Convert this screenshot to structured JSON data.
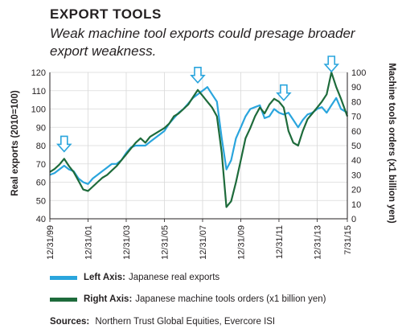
{
  "header": {
    "title": "EXPORT TOOLS",
    "subtitle": "Weak machine tool exports could presage broader export weakness."
  },
  "legend": {
    "left_prefix": "Left Axis:",
    "left_text": "Japanese real exports",
    "right_prefix": "Right Axis:",
    "right_text": "Japanese machine tools orders (x1 billion yen)"
  },
  "sources": {
    "prefix": "Sources:",
    "text": "Northern Trust Global Equities, Evercore ISI"
  },
  "colors": {
    "exports": "#2aa5dd",
    "machine_tools": "#1e6b3b",
    "arrow": "#2aa5dd"
  },
  "chart_data": {
    "type": "line",
    "ylabel_left": "Real exports (2010=100)",
    "ylabel_right": "Machine tools orders (x1 billion yen)",
    "ylim_left": [
      40,
      120
    ],
    "ylim_right": [
      0,
      100
    ],
    "yticks_left": [
      "40",
      "50",
      "60",
      "70",
      "80",
      "90",
      "100",
      "110",
      "120"
    ],
    "yticks_right": [
      "0",
      "10",
      "20",
      "30",
      "40",
      "50",
      "60",
      "70",
      "80",
      "90",
      "100"
    ],
    "xlim": [
      "1999-12-31",
      "2015-07-31"
    ],
    "xticks": [
      "12/31/99",
      "12/31/01",
      "12/31/03",
      "12/31/05",
      "12/31/07",
      "12/31/09",
      "12/31/11",
      "12/31/13",
      "7/31/15"
    ],
    "xtick_dates": [
      "1999-12-31",
      "2001-12-31",
      "2003-12-31",
      "2005-12-31",
      "2007-12-31",
      "2009-12-31",
      "2011-12-31",
      "2013-12-31",
      "2015-07-31"
    ],
    "grid": true,
    "markers": [
      {
        "date": "2000-09-30",
        "label": "peak"
      },
      {
        "date": "2007-09-30",
        "label": "peak"
      },
      {
        "date": "2012-03-31",
        "label": "peak"
      },
      {
        "date": "2014-09-30",
        "label": "peak"
      }
    ],
    "series": [
      {
        "name": "Japanese real exports",
        "axis": "left",
        "x": [
          "1999-12-31",
          "2000-03-31",
          "2000-06-30",
          "2000-09-30",
          "2000-12-31",
          "2001-03-31",
          "2001-06-30",
          "2001-09-30",
          "2001-12-31",
          "2002-03-31",
          "2002-06-30",
          "2002-09-30",
          "2002-12-31",
          "2003-03-31",
          "2003-06-30",
          "2003-09-30",
          "2003-12-31",
          "2004-03-31",
          "2004-06-30",
          "2004-09-30",
          "2004-12-31",
          "2005-03-31",
          "2005-06-30",
          "2005-09-30",
          "2005-12-31",
          "2006-03-31",
          "2006-06-30",
          "2006-09-30",
          "2006-12-31",
          "2007-03-31",
          "2007-06-30",
          "2007-09-30",
          "2007-12-31",
          "2008-03-31",
          "2008-06-30",
          "2008-09-30",
          "2008-12-31",
          "2009-03-31",
          "2009-06-30",
          "2009-09-30",
          "2009-12-31",
          "2010-03-31",
          "2010-06-30",
          "2010-09-30",
          "2010-12-31",
          "2011-03-31",
          "2011-06-30",
          "2011-09-30",
          "2011-12-31",
          "2012-03-31",
          "2012-06-30",
          "2012-09-30",
          "2012-12-31",
          "2013-03-31",
          "2013-06-30",
          "2013-09-30",
          "2013-12-31",
          "2014-03-31",
          "2014-06-30",
          "2014-09-30",
          "2014-12-31",
          "2015-03-31",
          "2015-07-31"
        ],
        "values": [
          64,
          65,
          67,
          69,
          67,
          66,
          62,
          60,
          59,
          62,
          64,
          66,
          68,
          70,
          70,
          72,
          76,
          79,
          80,
          80,
          80,
          82,
          84,
          86,
          88,
          92,
          95,
          98,
          100,
          103,
          106,
          108,
          110,
          112,
          108,
          104,
          84,
          67,
          72,
          84,
          90,
          96,
          100,
          101,
          102,
          95,
          96,
          100,
          98,
          97,
          98,
          94,
          90,
          94,
          97,
          98,
          100,
          101,
          98,
          102,
          106,
          100,
          98
        ]
      },
      {
        "name": "Japanese machine tools orders (x1 billion yen)",
        "axis": "right",
        "x": [
          "1999-12-31",
          "2000-03-31",
          "2000-06-30",
          "2000-09-30",
          "2000-12-31",
          "2001-03-31",
          "2001-06-30",
          "2001-09-30",
          "2001-12-31",
          "2002-03-31",
          "2002-06-30",
          "2002-09-30",
          "2002-12-31",
          "2003-03-31",
          "2003-06-30",
          "2003-09-30",
          "2003-12-31",
          "2004-03-31",
          "2004-06-30",
          "2004-09-30",
          "2004-12-31",
          "2005-03-31",
          "2005-06-30",
          "2005-09-30",
          "2005-12-31",
          "2006-03-31",
          "2006-06-30",
          "2006-09-30",
          "2006-12-31",
          "2007-03-31",
          "2007-06-30",
          "2007-09-30",
          "2007-12-31",
          "2008-03-31",
          "2008-06-30",
          "2008-09-30",
          "2008-12-31",
          "2009-03-31",
          "2009-06-30",
          "2009-09-30",
          "2009-12-31",
          "2010-03-31",
          "2010-06-30",
          "2010-09-30",
          "2010-12-31",
          "2011-03-31",
          "2011-06-30",
          "2011-09-30",
          "2011-12-31",
          "2012-03-31",
          "2012-06-30",
          "2012-09-30",
          "2012-12-31",
          "2013-03-31",
          "2013-06-30",
          "2013-09-30",
          "2013-12-31",
          "2014-03-31",
          "2014-06-30",
          "2014-09-30",
          "2014-12-31",
          "2015-03-31",
          "2015-07-31"
        ],
        "values": [
          32,
          34,
          37,
          41,
          36,
          32,
          26,
          20,
          19,
          22,
          25,
          28,
          30,
          33,
          36,
          40,
          44,
          48,
          52,
          55,
          52,
          56,
          58,
          60,
          62,
          65,
          70,
          72,
          75,
          78,
          83,
          88,
          84,
          80,
          76,
          70,
          45,
          8,
          12,
          25,
          40,
          55,
          62,
          70,
          76,
          72,
          78,
          82,
          80,
          76,
          60,
          52,
          50,
          60,
          68,
          72,
          76,
          80,
          85,
          100,
          90,
          82,
          70
        ]
      }
    ]
  }
}
